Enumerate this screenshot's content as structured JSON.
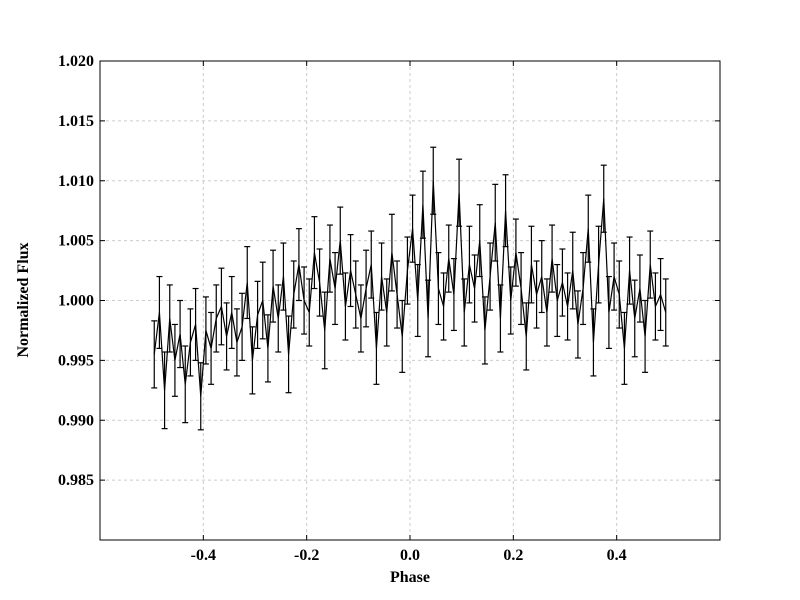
{
  "chart_data": {
    "type": "errorbar",
    "x_label": "Phase",
    "y_label": "Normalized Flux",
    "xlim": [
      -0.6,
      0.6
    ],
    "ylim": [
      0.98,
      1.02
    ],
    "xticks": [
      -0.4,
      -0.2,
      {
        "value": 0,
        "label": "0.0"
      },
      0.2,
      0.4
    ],
    "yticks": [
      {
        "value": 0.985,
        "label": "0.985"
      },
      {
        "value": 0.99,
        "label": "0.990"
      },
      {
        "value": 0.995,
        "label": "0.995"
      },
      {
        "value": 1.0,
        "label": "1.000"
      },
      {
        "value": 1.005,
        "label": "1.005"
      },
      {
        "value": 1.01,
        "label": "1.010"
      },
      {
        "value": 1.015,
        "label": "1.015"
      },
      {
        "value": 1.02,
        "label": "1.020"
      }
    ],
    "grid": true,
    "color": "#000000",
    "x": [
      -0.495,
      -0.485,
      -0.475,
      -0.465,
      -0.455,
      -0.445,
      -0.435,
      -0.425,
      -0.415,
      -0.405,
      -0.395,
      -0.385,
      -0.375,
      -0.365,
      -0.355,
      -0.345,
      -0.335,
      -0.325,
      -0.315,
      -0.305,
      -0.295,
      -0.285,
      -0.275,
      -0.265,
      -0.255,
      -0.245,
      -0.235,
      -0.225,
      -0.215,
      -0.205,
      -0.195,
      -0.185,
      -0.175,
      -0.165,
      -0.155,
      -0.145,
      -0.135,
      -0.125,
      -0.115,
      -0.105,
      -0.095,
      -0.085,
      -0.075,
      -0.065,
      -0.055,
      -0.045,
      -0.035,
      -0.025,
      -0.015,
      -0.005,
      0.005,
      0.015,
      0.025,
      0.035,
      0.045,
      0.055,
      0.065,
      0.075,
      0.085,
      0.095,
      0.105,
      0.115,
      0.125,
      0.135,
      0.145,
      0.155,
      0.165,
      0.175,
      0.185,
      0.195,
      0.205,
      0.215,
      0.225,
      0.235,
      0.245,
      0.255,
      0.265,
      0.275,
      0.285,
      0.295,
      0.305,
      0.315,
      0.325,
      0.335,
      0.345,
      0.355,
      0.365,
      0.375,
      0.385,
      0.395,
      0.405,
      0.415,
      0.425,
      0.435,
      0.445,
      0.455,
      0.465,
      0.475,
      0.485,
      0.495
    ],
    "values": [
      0.9955,
      0.999,
      0.9925,
      0.9985,
      0.995,
      0.9972,
      0.993,
      0.9965,
      0.998,
      0.992,
      0.9975,
      0.996,
      0.9985,
      0.9995,
      0.997,
      0.999,
      0.9965,
      0.9978,
      1.0015,
      0.995,
      0.9988,
      1.0,
      0.996,
      1.0012,
      0.9985,
      1.002,
      0.9955,
      1.0005,
      1.003,
      1.0,
      0.999,
      1.004,
      1.0015,
      0.9975,
      1.0035,
      1.001,
      1.005,
      0.9995,
      1.0025,
      1.0005,
      0.9985,
      1.001,
      1.003,
      0.996,
      1.002,
      0.999,
      1.004,
      1.0005,
      0.997,
      1.0025,
      1.006,
      1.0,
      1.008,
      0.9985,
      1.01,
      1.001,
      0.9995,
      1.0035,
      1.0005,
      1.009,
      0.999,
      1.003,
      1.001,
      1.005,
      0.9975,
      1.002,
      1.0065,
      0.9985,
      1.0075,
      1.0,
      1.004,
      1.001,
      0.997,
      1.003,
      1.0005,
      1.002,
      0.999,
      1.0035,
      1.0,
      1.0015,
      0.9995,
      1.0025,
      0.998,
      1.001,
      1.006,
      0.9965,
      1.003,
      1.0085,
      0.999,
      1.002,
      1.0005,
      0.996,
      1.0025,
      0.9985,
      1.001,
      0.997,
      1.003,
      0.9995,
      1.0005,
      0.999
    ],
    "errors": [
      0.0028,
      0.003,
      0.0032,
      0.0028,
      0.003,
      0.0028,
      0.0032,
      0.0028,
      0.003,
      0.0028,
      0.0028,
      0.003,
      0.0028,
      0.0032,
      0.0028,
      0.003,
      0.0028,
      0.0028,
      0.003,
      0.0028,
      0.0028,
      0.0032,
      0.0028,
      0.003,
      0.0028,
      0.0028,
      0.0032,
      0.0028,
      0.003,
      0.0028,
      0.0028,
      0.003,
      0.0028,
      0.0032,
      0.0028,
      0.003,
      0.0028,
      0.0028,
      0.003,
      0.0028,
      0.0028,
      0.0032,
      0.0028,
      0.003,
      0.0028,
      0.0028,
      0.0032,
      0.0028,
      0.003,
      0.0028,
      0.0028,
      0.003,
      0.0028,
      0.0032,
      0.0028,
      0.003,
      0.0028,
      0.0028,
      0.003,
      0.0028,
      0.0028,
      0.0032,
      0.0028,
      0.003,
      0.0028,
      0.0028,
      0.0032,
      0.0028,
      0.003,
      0.0028,
      0.0028,
      0.003,
      0.0028,
      0.0032,
      0.0028,
      0.003,
      0.0028,
      0.0028,
      0.003,
      0.0028,
      0.0028,
      0.0032,
      0.0028,
      0.003,
      0.0028,
      0.0028,
      0.0032,
      0.0028,
      0.003,
      0.0028,
      0.0028,
      0.003,
      0.0028,
      0.0032,
      0.0028,
      0.003,
      0.0028,
      0.0028,
      0.003,
      0.0028
    ]
  }
}
